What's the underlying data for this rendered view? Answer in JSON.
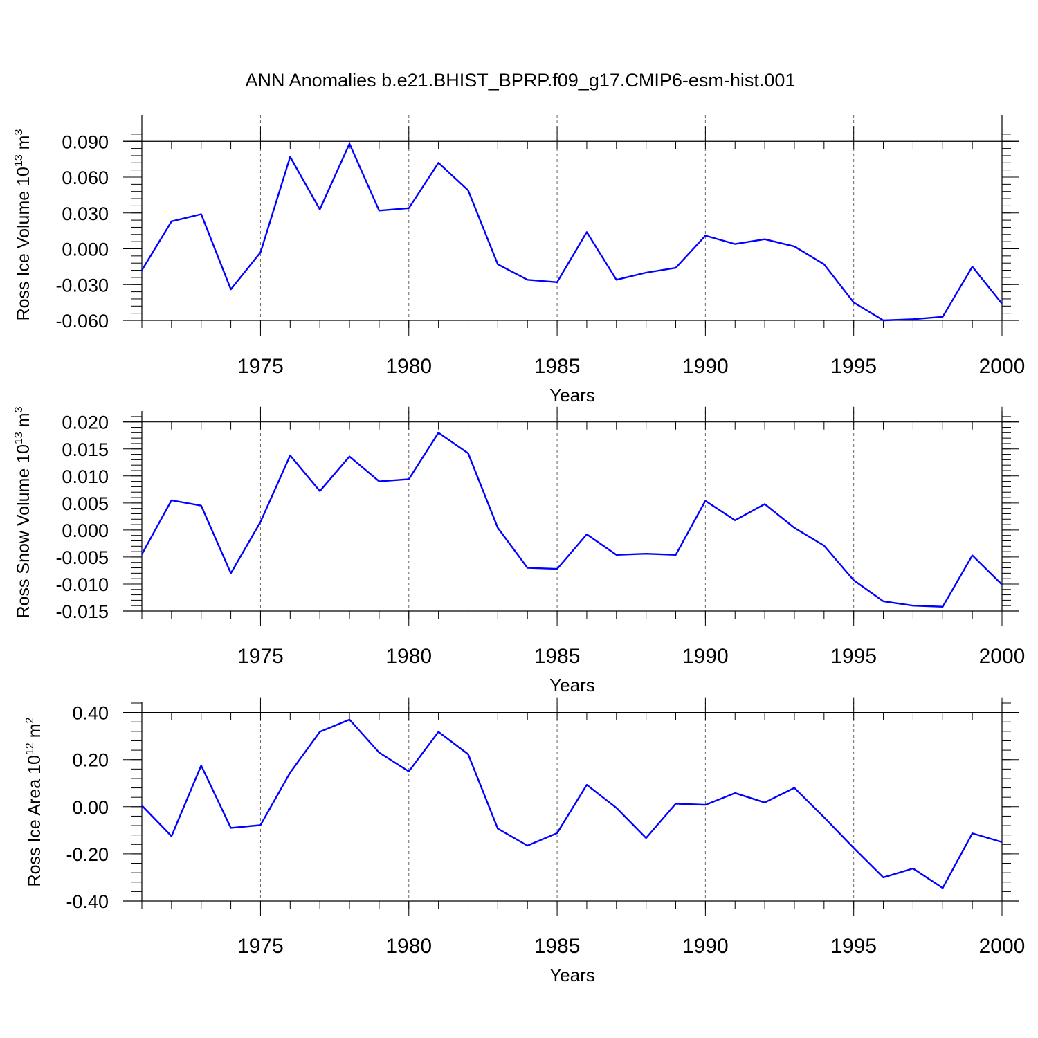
{
  "title": "ANN Anomalies b.e21.BHIST_BPRP.f09_g17.CMIP6-esm-hist.001",
  "colors": {
    "series": "#0000ff",
    "axis": "#000000",
    "grid": "#666666"
  },
  "chart_data": [
    {
      "type": "line",
      "ylabel_main": "Ross Ice Volume 10",
      "ylabel_exp": "13",
      "ylabel_unit": "m",
      "ylabel_unit_exp": "3",
      "xlabel": "Years",
      "xlim": [
        1971,
        2000
      ],
      "ylim": [
        -0.06,
        0.1
      ],
      "yticks": [
        -0.06,
        -0.03,
        0.0,
        0.03,
        0.06,
        0.09
      ],
      "ytick_labels": [
        "-0.060",
        "-0.030",
        "0.000",
        "0.030",
        "0.060",
        "0.090"
      ],
      "yminor_step": 0.006,
      "xticks": [
        1975,
        1980,
        1985,
        1990,
        1995,
        2000
      ],
      "xtick_labels": [
        "1975",
        "1980",
        "1985",
        "1990",
        "1995",
        "2000"
      ],
      "x": [
        1971,
        1972,
        1973,
        1974,
        1975,
        1976,
        1977,
        1978,
        1979,
        1980,
        1981,
        1982,
        1983,
        1984,
        1985,
        1986,
        1987,
        1988,
        1989,
        1990,
        1991,
        1992,
        1993,
        1994,
        1995,
        1996,
        1997,
        1998,
        1999,
        2000
      ],
      "series": [
        {
          "name": "Ross Ice Volume",
          "values": [
            -0.018,
            0.023,
            0.029,
            -0.034,
            -0.003,
            0.077,
            0.033,
            0.088,
            0.032,
            0.034,
            0.072,
            0.049,
            -0.013,
            -0.026,
            -0.028,
            0.014,
            -0.026,
            -0.02,
            -0.016,
            0.011,
            0.004,
            0.008,
            0.002,
            -0.013,
            -0.045,
            -0.06,
            -0.059,
            -0.057,
            -0.015,
            -0.046
          ]
        }
      ]
    },
    {
      "type": "line",
      "ylabel_main": "Ross Snow Volume 10",
      "ylabel_exp": "13",
      "ylabel_unit": "m",
      "ylabel_unit_exp": "3",
      "xlabel": "Years",
      "xlim": [
        1971,
        2000
      ],
      "ylim": [
        -0.015,
        0.0215
      ],
      "yticks": [
        -0.015,
        -0.01,
        -0.005,
        0.0,
        0.005,
        0.01,
        0.015,
        0.02
      ],
      "ytick_labels": [
        "-0.015",
        "-0.010",
        "-0.005",
        "0.000",
        "0.005",
        "0.010",
        "0.015",
        "0.020"
      ],
      "yminor_step": 0.001,
      "xticks": [
        1975,
        1980,
        1985,
        1990,
        1995,
        2000
      ],
      "xtick_labels": [
        "1975",
        "1980",
        "1985",
        "1990",
        "1995",
        "2000"
      ],
      "x": [
        1971,
        1972,
        1973,
        1974,
        1975,
        1976,
        1977,
        1978,
        1979,
        1980,
        1981,
        1982,
        1983,
        1984,
        1985,
        1986,
        1987,
        1988,
        1989,
        1990,
        1991,
        1992,
        1993,
        1994,
        1995,
        1996,
        1997,
        1998,
        1999,
        2000
      ],
      "series": [
        {
          "name": "Ross Snow Volume",
          "values": [
            -0.0045,
            0.0055,
            0.0045,
            -0.008,
            0.0015,
            0.0138,
            0.0072,
            0.0136,
            0.009,
            0.0094,
            0.018,
            0.0142,
            0.0004,
            -0.007,
            -0.0072,
            -0.0008,
            -0.0046,
            -0.0044,
            -0.0046,
            0.0054,
            0.0018,
            0.0048,
            0.0004,
            -0.0029,
            -0.0093,
            -0.0132,
            -0.014,
            -0.0142,
            -0.0047,
            -0.0101
          ]
        }
      ]
    },
    {
      "type": "line",
      "ylabel_main": "Ross Ice Area 10",
      "ylabel_exp": "12",
      "ylabel_unit": "m",
      "ylabel_unit_exp": "2",
      "xlabel": "Years",
      "xlim": [
        1971,
        2000
      ],
      "ylim": [
        -0.4,
        0.44
      ],
      "yticks": [
        -0.4,
        -0.2,
        0.0,
        0.2,
        0.4
      ],
      "ytick_labels": [
        "-0.40",
        "-0.20",
        "0.00",
        "0.20",
        "0.40"
      ],
      "yminor_step": 0.04,
      "xticks": [
        1975,
        1980,
        1985,
        1990,
        1995,
        2000
      ],
      "xtick_labels": [
        "1975",
        "1980",
        "1985",
        "1990",
        "1995",
        "2000"
      ],
      "x": [
        1971,
        1972,
        1973,
        1974,
        1975,
        1976,
        1977,
        1978,
        1979,
        1980,
        1981,
        1982,
        1983,
        1984,
        1985,
        1986,
        1987,
        1988,
        1989,
        1990,
        1991,
        1992,
        1993,
        1994,
        1995,
        1996,
        1997,
        1998,
        1999,
        2000
      ],
      "series": [
        {
          "name": "Ross Ice Area",
          "values": [
            0.005,
            -0.125,
            0.175,
            -0.09,
            -0.078,
            0.145,
            0.318,
            0.37,
            0.23,
            0.15,
            0.318,
            0.223,
            -0.093,
            -0.165,
            -0.112,
            0.093,
            -0.005,
            -0.133,
            0.013,
            0.008,
            0.058,
            0.018,
            0.08,
            -0.045,
            -0.175,
            -0.3,
            -0.262,
            -0.345,
            -0.113,
            -0.15
          ]
        }
      ]
    }
  ]
}
